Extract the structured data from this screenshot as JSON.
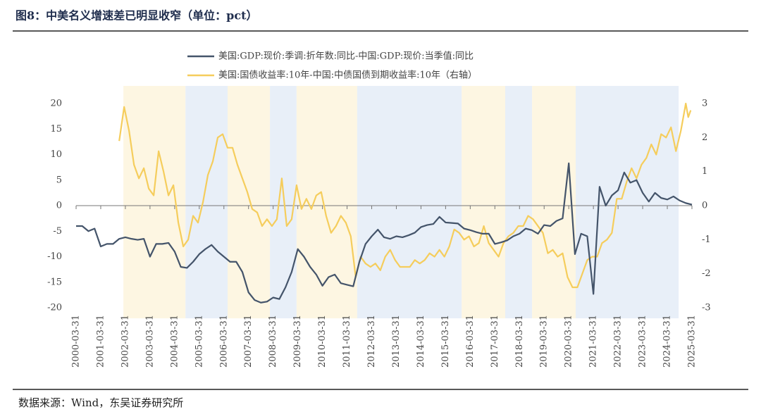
{
  "chart_data": {
    "type": "line",
    "title": "图8：中美名义增速差已明显收窄（单位：pct）",
    "source": "数据来源：Wind，东吴证券研究所",
    "xlim": [
      2000.25,
      2025.25
    ],
    "xticks": [
      {
        "value": 2000.25,
        "label": "2000-03-31"
      },
      {
        "value": 2001.25,
        "label": "2001-03-31"
      },
      {
        "value": 2002.25,
        "label": "2002-03-31"
      },
      {
        "value": 2003.25,
        "label": "2003-03-31"
      },
      {
        "value": 2004.25,
        "label": "2004-03-31"
      },
      {
        "value": 2005.25,
        "label": "2005-03-31"
      },
      {
        "value": 2006.25,
        "label": "2006-03-31"
      },
      {
        "value": 2007.25,
        "label": "2007-03-31"
      },
      {
        "value": 2008.25,
        "label": "2008-03-31"
      },
      {
        "value": 2009.25,
        "label": "2009-03-31"
      },
      {
        "value": 2010.25,
        "label": "2010-03-31"
      },
      {
        "value": 2011.25,
        "label": "2011-03-31"
      },
      {
        "value": 2012.25,
        "label": "2012-03-31"
      },
      {
        "value": 2013.25,
        "label": "2013-03-31"
      },
      {
        "value": 2014.25,
        "label": "2014-03-31"
      },
      {
        "value": 2015.25,
        "label": "2015-03-31"
      },
      {
        "value": 2016.25,
        "label": "2016-03-31"
      },
      {
        "value": 2017.25,
        "label": "2017-03-31"
      },
      {
        "value": 2018.25,
        "label": "2018-03-31"
      },
      {
        "value": 2019.25,
        "label": "2019-03-31"
      },
      {
        "value": 2020.25,
        "label": "2020-03-31"
      },
      {
        "value": 2021.25,
        "label": "2021-03-31"
      },
      {
        "value": 2022.25,
        "label": "2022-03-31"
      },
      {
        "value": 2023.25,
        "label": "2023-03-31"
      },
      {
        "value": 2024.25,
        "label": "2024-03-31"
      },
      {
        "value": 2025.25,
        "label": "2025-03-31"
      }
    ],
    "ylim": [
      -20,
      20
    ],
    "yticks": [
      -20,
      -15,
      -10,
      -5,
      0,
      5,
      10,
      15,
      20
    ],
    "y2lim": [
      -3,
      3
    ],
    "y2ticks": [
      -3,
      -2,
      -1,
      0,
      1,
      2,
      3
    ],
    "shading": [
      {
        "start": 2002.17,
        "end": 2004.69,
        "color": "#fdf6e2"
      },
      {
        "start": 2004.69,
        "end": 2006.4,
        "color": "#e8eff8"
      },
      {
        "start": 2006.4,
        "end": 2008.12,
        "color": "#fdf6e2"
      },
      {
        "start": 2008.12,
        "end": 2009.2,
        "color": "#e8eff8"
      },
      {
        "start": 2009.2,
        "end": 2011.66,
        "color": "#fdf6e2"
      },
      {
        "start": 2011.66,
        "end": 2015.9,
        "color": "#e8eff8"
      },
      {
        "start": 2015.9,
        "end": 2017.67,
        "color": "#fdf6e2"
      },
      {
        "start": 2017.67,
        "end": 2018.76,
        "color": "#e8eff8"
      },
      {
        "start": 2018.76,
        "end": 2020.53,
        "color": "#fdf6e2"
      },
      {
        "start": 2020.53,
        "end": 2024.71,
        "color": "#e8eff8"
      }
    ],
    "series": [
      {
        "name": "美国:GDP:现价:季调:折年数:同比-中国:GDP:现价:当季值:同比",
        "color": "#44546a",
        "x": [
          2000.25,
          2000.5,
          2000.75,
          2001,
          2001.25,
          2001.5,
          2001.75,
          2002,
          2002.25,
          2002.5,
          2002.75,
          2003,
          2003.25,
          2003.5,
          2003.75,
          2004,
          2004.25,
          2004.5,
          2004.75,
          2005,
          2005.25,
          2005.5,
          2005.75,
          2006,
          2006.25,
          2006.5,
          2006.75,
          2007,
          2007.25,
          2007.5,
          2007.75,
          2008,
          2008.25,
          2008.5,
          2008.75,
          2009,
          2009.25,
          2009.5,
          2009.75,
          2010,
          2010.25,
          2010.5,
          2010.75,
          2011,
          2011.25,
          2011.5,
          2011.75,
          2012,
          2012.25,
          2012.5,
          2012.75,
          2013,
          2013.25,
          2013.5,
          2013.75,
          2014,
          2014.25,
          2014.5,
          2014.75,
          2015,
          2015.25,
          2015.5,
          2015.75,
          2016,
          2016.25,
          2016.5,
          2016.75,
          2017,
          2017.25,
          2017.5,
          2017.75,
          2018,
          2018.25,
          2018.5,
          2018.75,
          2019,
          2019.25,
          2019.5,
          2019.75,
          2020,
          2020.25,
          2020.5,
          2020.75,
          2021,
          2021.25,
          2021.5,
          2021.75,
          2022,
          2022.25,
          2022.5,
          2022.75,
          2023,
          2023.25,
          2023.5,
          2023.75,
          2024,
          2024.25,
          2024.5,
          2024.75,
          2025,
          2025.25
        ],
        "values": [
          -4,
          -4,
          -5,
          -4.5,
          -8,
          -7.5,
          -7.5,
          -6.5,
          -6.2,
          -6.5,
          -6.7,
          -6.5,
          -10,
          -7.5,
          -7.5,
          -7.3,
          -9,
          -12,
          -12.2,
          -11,
          -9.5,
          -8.5,
          -7.7,
          -9,
          -10,
          -11,
          -11,
          -13,
          -17,
          -18.5,
          -19,
          -18.8,
          -18,
          -18.3,
          -16,
          -13,
          -8.5,
          -10,
          -12,
          -13.5,
          -15.7,
          -14,
          -13.5,
          -15.2,
          -15.5,
          -15.8,
          -11,
          -7.5,
          -6,
          -4.7,
          -6.2,
          -6.5,
          -6,
          -6.2,
          -5.8,
          -5.3,
          -4.2,
          -3.8,
          -3.6,
          -2.2,
          -3.3,
          -3.4,
          -3.5,
          -4.5,
          -4.8,
          -5.2,
          -5.5,
          -5.5,
          -7.5,
          -7.2,
          -6.8,
          -6,
          -5.5,
          -4.5,
          -4.8,
          -5.5,
          -3.8,
          -4,
          -3,
          -2.5,
          8.3,
          -9.5,
          -5.5,
          -6,
          -17.3,
          3.7,
          0,
          2,
          3,
          6.5,
          4.5,
          5,
          2.5,
          0.8,
          2.5,
          1.5,
          1.2,
          1.8,
          1,
          0.5,
          0.2
        ]
      },
      {
        "name": "美国:国债收益率:10年-中国:中债国债到期收益率:10年（右轴）",
        "color": "#f5cd5c",
        "axis": "y2",
        "x": [
          2002,
          2002.2,
          2002.4,
          2002.6,
          2002.8,
          2003,
          2003.2,
          2003.4,
          2003.6,
          2003.8,
          2004,
          2004.2,
          2004.4,
          2004.6,
          2004.8,
          2005,
          2005.2,
          2005.4,
          2005.6,
          2005.8,
          2006,
          2006.2,
          2006.4,
          2006.6,
          2006.8,
          2007,
          2007.2,
          2007.4,
          2007.6,
          2007.8,
          2008,
          2008.2,
          2008.4,
          2008.6,
          2008.8,
          2009,
          2009.2,
          2009.4,
          2009.6,
          2009.8,
          2010,
          2010.2,
          2010.4,
          2010.6,
          2010.8,
          2011,
          2011.2,
          2011.4,
          2011.6,
          2011.8,
          2012,
          2012.2,
          2012.4,
          2012.6,
          2012.8,
          2013,
          2013.2,
          2013.4,
          2013.6,
          2013.8,
          2014,
          2014.2,
          2014.4,
          2014.6,
          2014.8,
          2015,
          2015.2,
          2015.4,
          2015.6,
          2015.8,
          2016,
          2016.2,
          2016.4,
          2016.6,
          2016.8,
          2017,
          2017.2,
          2017.4,
          2017.6,
          2017.8,
          2018,
          2018.2,
          2018.4,
          2018.6,
          2018.8,
          2019,
          2019.2,
          2019.4,
          2019.6,
          2019.8,
          2020,
          2020.2,
          2020.4,
          2020.6,
          2020.8,
          2021,
          2021.2,
          2021.4,
          2021.6,
          2021.8,
          2022,
          2022.2,
          2022.4,
          2022.6,
          2022.8,
          2023,
          2023.2,
          2023.4,
          2023.6,
          2023.8,
          2024,
          2024.2,
          2024.4,
          2024.6,
          2024.8,
          2025,
          2025.1,
          2025.2
        ],
        "values": [
          1.9,
          2.9,
          2.2,
          1.2,
          0.8,
          1.1,
          0.5,
          0.3,
          1.6,
          1.0,
          0.3,
          0.6,
          -0.5,
          -1.2,
          -1.0,
          -0.3,
          -0.5,
          0.1,
          0.9,
          1.3,
          2.0,
          2.1,
          1.7,
          1.7,
          1.2,
          0.8,
          0.4,
          -0.1,
          -0.2,
          -0.6,
          -0.4,
          -0.6,
          -0.4,
          0.8,
          -0.6,
          -0.4,
          0.6,
          -0.1,
          0.2,
          -0.1,
          0.3,
          0.4,
          -0.3,
          -0.8,
          -0.6,
          -0.3,
          -0.5,
          -0.9,
          -2.1,
          -1.5,
          -1.7,
          -1.8,
          -1.7,
          -1.9,
          -1.5,
          -1.3,
          -1.6,
          -1.8,
          -1.8,
          -1.8,
          -1.6,
          -1.7,
          -1.6,
          -1.4,
          -1.5,
          -1.3,
          -1.5,
          -1.2,
          -0.7,
          -0.8,
          -1.0,
          -0.9,
          -1.2,
          -1.1,
          -0.6,
          -1.1,
          -1.3,
          -1.5,
          -1.1,
          -0.9,
          -0.8,
          -0.6,
          -0.6,
          -0.3,
          -0.4,
          -0.6,
          -0.8,
          -1.4,
          -1.3,
          -1.5,
          -1.4,
          -2.1,
          -2.4,
          -2.4,
          -2.0,
          -1.6,
          -1.5,
          -1.5,
          -1.1,
          -1.0,
          -0.8,
          0.2,
          0.2,
          0.7,
          1.1,
          0.8,
          1.2,
          1.4,
          1.8,
          1.5,
          2.1,
          2.0,
          2.3,
          1.6,
          2.2,
          3.0,
          2.6,
          2.8
        ]
      }
    ]
  }
}
